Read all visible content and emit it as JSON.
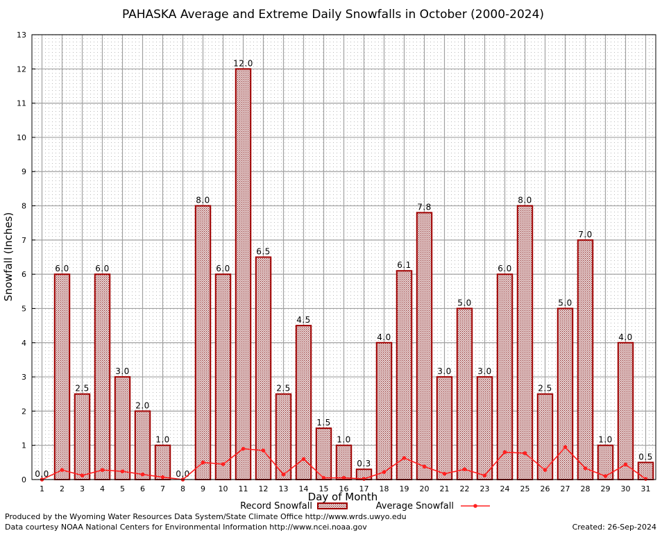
{
  "chart_data": {
    "type": "bar",
    "title": "PAHASKA Average and Extreme Daily Snowfalls in October (2000-2024)",
    "xlabel": "Day of Month",
    "ylabel": "Snowfall (Inches)",
    "ylim": [
      0,
      13
    ],
    "yticks": [
      "0",
      "1",
      "2",
      "3",
      "4",
      "5",
      "6",
      "7",
      "8",
      "9",
      "10",
      "11",
      "12",
      "13"
    ],
    "grid": true,
    "categories": [
      "1",
      "2",
      "3",
      "4",
      "5",
      "6",
      "7",
      "8",
      "9",
      "10",
      "11",
      "12",
      "13",
      "14",
      "15",
      "16",
      "17",
      "18",
      "19",
      "20",
      "21",
      "22",
      "23",
      "24",
      "25",
      "26",
      "27",
      "28",
      "29",
      "30",
      "31"
    ],
    "series": [
      {
        "name": "Record Snowfall",
        "type": "bar",
        "values": [
          0.0,
          6.0,
          2.5,
          6.0,
          3.0,
          2.0,
          1.0,
          0.0,
          8.0,
          6.0,
          12.0,
          6.5,
          2.5,
          4.5,
          1.5,
          1.0,
          0.3,
          4.0,
          6.1,
          7.8,
          3.0,
          5.0,
          3.0,
          6.0,
          8.0,
          2.5,
          5.0,
          7.0,
          1.0,
          4.0,
          0.5
        ],
        "labels": [
          "0.0",
          "6.0",
          "2.5",
          "6.0",
          "3.0",
          "2.0",
          "1.0",
          "0.0",
          "8.0",
          "6.0",
          "12.0",
          "6.5",
          "2.5",
          "4.5",
          "1.5",
          "1.0",
          "0.3",
          "4.0",
          "6.1",
          "7.8",
          "3.0",
          "5.0",
          "3.0",
          "6.0",
          "8.0",
          "2.5",
          "5.0",
          "7.0",
          "1.0",
          "4.0",
          "0.5"
        ]
      },
      {
        "name": "Average Snowfall",
        "type": "line",
        "values": [
          0.0,
          0.28,
          0.12,
          0.28,
          0.24,
          0.15,
          0.07,
          0.0,
          0.5,
          0.45,
          0.9,
          0.85,
          0.15,
          0.6,
          0.05,
          0.05,
          0.02,
          0.22,
          0.63,
          0.38,
          0.17,
          0.3,
          0.12,
          0.8,
          0.77,
          0.28,
          0.95,
          0.33,
          0.1,
          0.44,
          0.02
        ]
      }
    ],
    "legend_position": "bottom"
  },
  "colors": {
    "bar_outline": "#a00000",
    "bar_fill": "#d8b8b8",
    "average_line": "#ff2020",
    "grid": "#a0a0a0"
  },
  "credits": {
    "producer": "Produced by the Wyoming Water Resources Data System/State Climate Office http://www.wrds.uwyo.edu",
    "source": "Data courtesy NOAA National Centers for Environmental Information http://www.ncei.noaa.gov",
    "created": "Created:  26-Sep-2024"
  }
}
